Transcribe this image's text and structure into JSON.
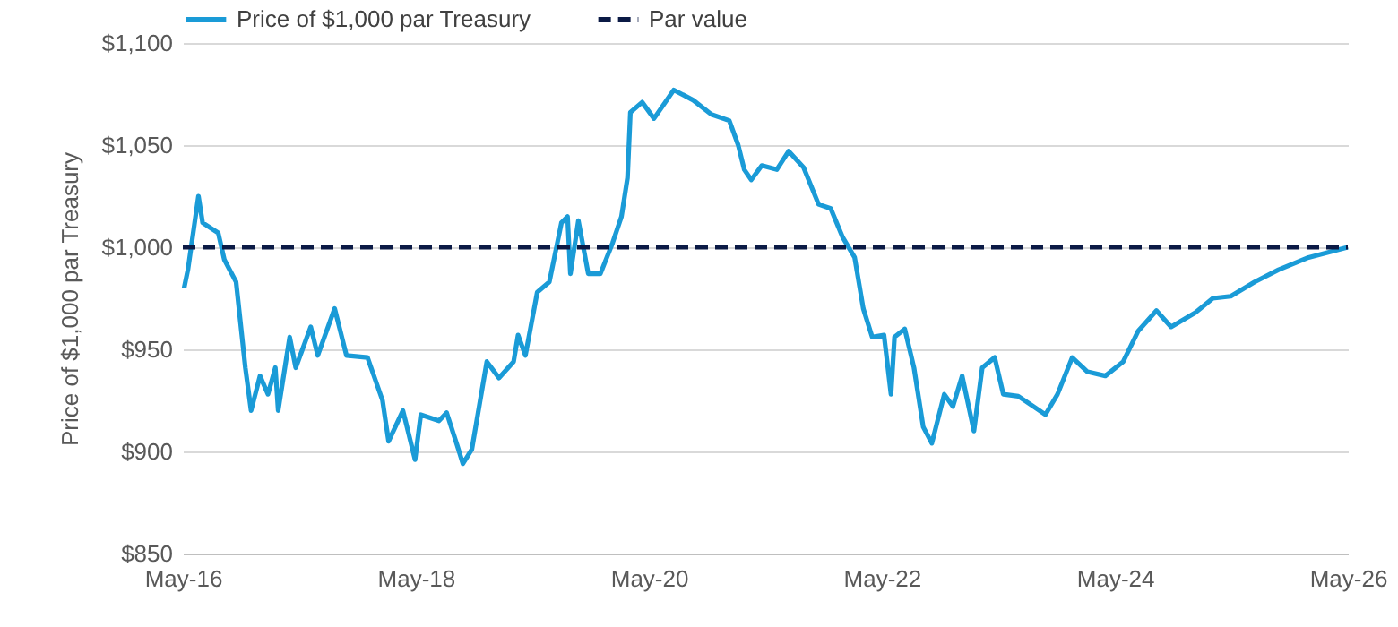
{
  "chart_data": {
    "type": "line",
    "ylabel": "Price of $1,000 par Treasury",
    "xlim": [
      "2016-05-01",
      "2026-05-01"
    ],
    "xticks": [
      {
        "value": "2016-05-01",
        "label": "May-16"
      },
      {
        "value": "2018-05-01",
        "label": "May-18"
      },
      {
        "value": "2020-05-01",
        "label": "May-20"
      },
      {
        "value": "2022-05-01",
        "label": "May-22"
      },
      {
        "value": "2024-05-01",
        "label": "May-24"
      },
      {
        "value": "2026-05-01",
        "label": "May-26"
      }
    ],
    "ylim": [
      850,
      1100
    ],
    "yticks": [
      {
        "value": 850,
        "label": "$850"
      },
      {
        "value": 900,
        "label": "$900"
      },
      {
        "value": 950,
        "label": "$950"
      },
      {
        "value": 1000,
        "label": "$1,000"
      },
      {
        "value": 1050,
        "label": "$1,050"
      },
      {
        "value": 1100,
        "label": "$1,100"
      }
    ],
    "grid": "y",
    "legend": "top",
    "series": [
      {
        "name": "Price of $1,000 par Treasury",
        "color": "#1a9bd7",
        "line_style": "solid",
        "x": [
          "2016-05-05",
          "2016-05-17",
          "2016-06-19",
          "2016-07-02",
          "2016-08-20",
          "2016-09-08",
          "2016-10-15",
          "2016-11-13",
          "2016-12-01",
          "2016-12-29",
          "2017-01-23",
          "2017-02-15",
          "2017-02-24",
          "2017-04-01",
          "2017-04-20",
          "2017-06-06",
          "2017-06-28",
          "2017-08-20",
          "2017-09-26",
          "2017-12-01",
          "2018-01-17",
          "2018-02-05",
          "2018-03-22",
          "2018-04-29",
          "2018-05-17",
          "2018-07-13",
          "2018-08-06",
          "2018-09-08",
          "2018-09-26",
          "2018-10-24",
          "2018-12-10",
          "2019-01-17",
          "2019-03-04",
          "2019-03-18",
          "2019-04-10",
          "2019-05-17",
          "2019-06-24",
          "2019-08-01",
          "2019-08-20",
          "2019-08-29",
          "2019-09-23",
          "2019-10-24",
          "2019-12-01",
          "2020-01-08",
          "2020-02-05",
          "2020-02-24",
          "2020-03-04",
          "2020-04-10",
          "2020-05-17",
          "2020-07-18",
          "2020-09-17",
          "2020-11-13",
          "2021-01-08",
          "2021-02-05",
          "2021-02-24",
          "2021-03-18",
          "2021-04-20",
          "2021-06-06",
          "2021-07-13",
          "2021-08-29",
          "2021-10-15",
          "2021-11-22",
          "2021-12-29",
          "2022-02-05",
          "2022-03-04",
          "2022-04-01",
          "2022-05-08",
          "2022-05-30",
          "2022-06-10",
          "2022-07-12",
          "2022-08-10",
          "2022-09-08",
          "2022-10-05",
          "2022-11-13",
          "2022-12-10",
          "2023-01-08",
          "2023-02-14",
          "2023-03-12",
          "2023-04-20",
          "2023-05-17",
          "2023-07-03",
          "2023-08-20",
          "2023-09-26",
          "2023-11-03",
          "2023-12-19",
          "2024-02-05",
          "2024-04-01",
          "2024-05-27",
          "2024-07-13",
          "2024-09-08",
          "2024-10-24",
          "2025-01-08",
          "2025-03-04",
          "2025-04-29",
          "2025-07-13",
          "2025-09-26",
          "2025-12-29",
          "2026-05-01"
        ],
        "values": [
          980,
          989,
          1025,
          1012,
          1007,
          994,
          983,
          941,
          920,
          937,
          928,
          941,
          920,
          956,
          941,
          961,
          947,
          970,
          947,
          946,
          925,
          905,
          920,
          896,
          918,
          915,
          919,
          903,
          894,
          901,
          944,
          936,
          944,
          957,
          947,
          978,
          983,
          1012,
          1015,
          987,
          1013,
          987,
          987,
          1002,
          1015,
          1034,
          1066,
          1071,
          1063,
          1077,
          1072,
          1065,
          1062,
          1050,
          1038,
          1033,
          1040,
          1038,
          1047,
          1039,
          1021,
          1019,
          1005,
          995,
          970,
          956,
          957,
          928,
          956,
          960,
          941,
          912,
          904,
          928,
          922,
          937,
          910,
          941,
          946,
          928,
          927,
          922,
          918,
          928,
          946,
          939,
          937,
          944,
          959,
          969,
          961,
          968,
          975,
          976,
          983,
          989,
          995,
          1000
        ]
      },
      {
        "name": "Par value",
        "color": "#0b1a45",
        "line_style": "dashed",
        "x": [
          "2016-05-01",
          "2026-05-01"
        ],
        "values": [
          1000,
          1000
        ]
      }
    ]
  }
}
